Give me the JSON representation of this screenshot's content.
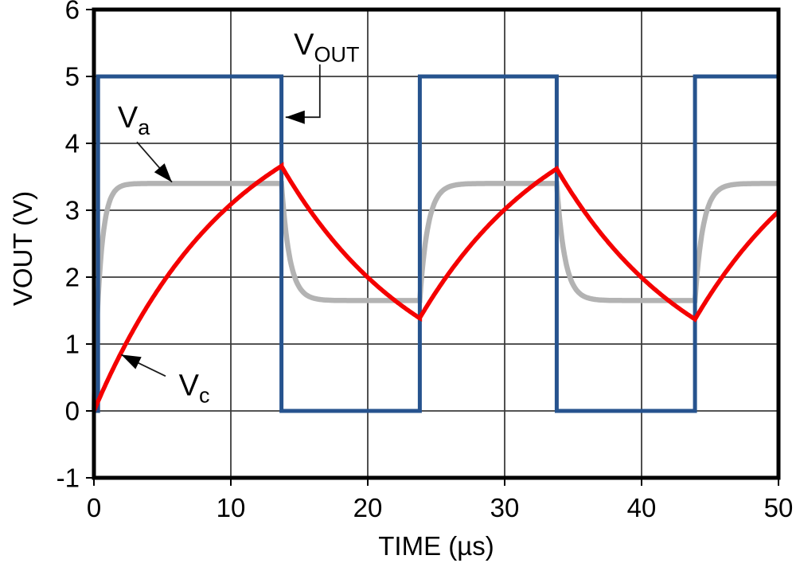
{
  "chart_data": {
    "type": "line",
    "title": "",
    "xlabel": "TIME (µs)",
    "ylabel": "VOUT (V)",
    "xlim": [
      0,
      50
    ],
    "ylim": [
      -1,
      6
    ],
    "xticks": [
      0,
      10,
      20,
      30,
      40,
      50
    ],
    "yticks": [
      6,
      5,
      4,
      3,
      2,
      1,
      0,
      -1
    ],
    "grid": true,
    "grid_color": "#3c3c3c",
    "frame_color": "#000000",
    "background": "#ffffff",
    "legend_position": "none",
    "series": [
      {
        "name": "Va",
        "kind": "exp",
        "color": "#b3b3b3",
        "width": 6.5,
        "description": "comparator input node: fast RC settling between thresholds 1.65 V and 3.4 V",
        "levels": {
          "high": 3.4,
          "low": 1.65
        },
        "segments": [
          {
            "t0": 0,
            "t1": 13.7,
            "v0": 0,
            "target": 3.4,
            "tau": 0.45
          },
          {
            "t0": 13.7,
            "t1": 23.8,
            "v0": 3.4,
            "target": 1.65,
            "tau": 0.6
          },
          {
            "t0": 23.8,
            "t1": 33.8,
            "v0": 1.65,
            "target": 3.4,
            "tau": 0.6
          },
          {
            "t0": 33.8,
            "t1": 43.9,
            "v0": 3.4,
            "target": 1.65,
            "tau": 0.6
          },
          {
            "t0": 43.9,
            "t1": 50,
            "v0": 1.65,
            "target": 3.4,
            "tau": 0.6
          }
        ],
        "knots": [
          [
            0,
            0
          ],
          [
            2,
            3.31
          ],
          [
            13.7,
            3.4
          ],
          [
            16.5,
            1.68
          ],
          [
            23.8,
            1.65
          ],
          [
            26.5,
            3.37
          ],
          [
            33.8,
            3.4
          ],
          [
            36.5,
            1.68
          ],
          [
            43.9,
            1.65
          ],
          [
            46.5,
            3.37
          ],
          [
            50,
            3.4
          ]
        ]
      },
      {
        "name": "VOUT",
        "kind": "steps",
        "color": "#26538e",
        "width": 5,
        "description": "square-wave output, 0 V / 5 V, period 20 µs",
        "levels": {
          "high": 5,
          "low": 0
        },
        "points": [
          [
            0,
            0
          ],
          [
            0.3,
            0
          ],
          [
            0.3,
            5
          ],
          [
            13.7,
            5
          ],
          [
            13.7,
            0
          ],
          [
            23.8,
            0
          ],
          [
            23.8,
            5
          ],
          [
            33.8,
            5
          ],
          [
            33.8,
            0
          ],
          [
            43.9,
            0
          ],
          [
            43.9,
            5
          ],
          [
            50,
            5
          ]
        ]
      },
      {
        "name": "Vc",
        "kind": "exp",
        "color": "#f40000",
        "width": 5.5,
        "description": "capacitor voltage: RC exponential toward 5 V or 0 V, tau ≈ 10.4 µs",
        "segments": [
          {
            "t0": 0,
            "t1": 13.7,
            "v0": 0,
            "target": 5,
            "tau": 10.4
          },
          {
            "t0": 13.7,
            "t1": 23.8,
            "v0": 3.66,
            "target": 0,
            "tau": 10.4
          },
          {
            "t0": 23.8,
            "t1": 33.8,
            "v0": 1.39,
            "target": 5,
            "tau": 10.4
          },
          {
            "t0": 33.8,
            "t1": 43.9,
            "v0": 3.62,
            "target": 0,
            "tau": 10.4
          },
          {
            "t0": 43.9,
            "t1": 50,
            "v0": 1.37,
            "target": 5,
            "tau": 10.4
          }
        ],
        "knots": [
          [
            0,
            0
          ],
          [
            5,
            1.91
          ],
          [
            10,
            3.09
          ],
          [
            13.7,
            3.66
          ],
          [
            18.7,
            2.26
          ],
          [
            23.8,
            1.39
          ],
          [
            28.8,
            2.77
          ],
          [
            33.8,
            3.62
          ],
          [
            38.8,
            2.24
          ],
          [
            43.9,
            1.37
          ],
          [
            47,
            2.54
          ],
          [
            50,
            2.98
          ]
        ]
      }
    ],
    "annotations": [
      {
        "id": "vout",
        "label": "V",
        "sub": "OUT",
        "text_x": 14.6,
        "text_y": 5.33,
        "leader": [
          [
            16.5,
            5.18
          ],
          [
            16.5,
            4.39
          ],
          [
            14.0,
            4.39
          ]
        ]
      },
      {
        "id": "va",
        "label": "V",
        "sub": "a",
        "text_x": 1.74,
        "text_y": 4.24,
        "leader": [
          [
            3.14,
            4.02
          ],
          [
            5.7,
            3.42
          ]
        ]
      },
      {
        "id": "vc",
        "label": "V",
        "sub": "c",
        "text_x": 6.2,
        "text_y": 0.23,
        "leader": [
          [
            5.23,
            0.52
          ],
          [
            2.0,
            0.84
          ]
        ]
      }
    ]
  }
}
